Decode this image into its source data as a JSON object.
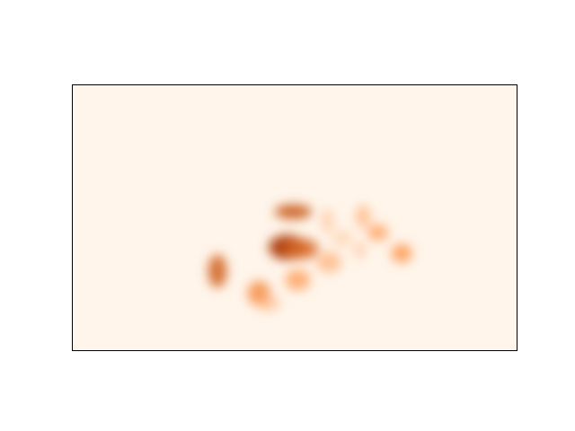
{
  "chart_data": {
    "type": "heatmap",
    "title": "",
    "xlabel": "",
    "ylabel": "",
    "axes_visible": false,
    "ticks_visible": false,
    "grid": false,
    "legend": "none",
    "colormap": "Oranges",
    "colors": {
      "low": "#fff5eb",
      "mid": "#fd8d3c",
      "high": "#a63603",
      "frame": "#000000"
    },
    "grid_size": [
      30,
      18
    ],
    "value_range": [
      0,
      1
    ],
    "hotspots": [
      {
        "x": 14.5,
        "y": 11.0,
        "sx": 0.9,
        "sy": 0.6,
        "value": 0.95
      },
      {
        "x": 15.5,
        "y": 11.1,
        "sx": 0.8,
        "sy": 0.5,
        "value": 0.7
      },
      {
        "x": 14.9,
        "y": 8.6,
        "sx": 0.9,
        "sy": 0.35,
        "value": 0.8
      },
      {
        "x": 9.8,
        "y": 12.6,
        "sx": 0.45,
        "sy": 0.8,
        "value": 0.75
      },
      {
        "x": 12.6,
        "y": 14.1,
        "sx": 0.55,
        "sy": 0.6,
        "value": 0.55
      },
      {
        "x": 13.2,
        "y": 14.8,
        "sx": 0.6,
        "sy": 0.35,
        "value": 0.3
      },
      {
        "x": 15.2,
        "y": 13.2,
        "sx": 0.6,
        "sy": 0.5,
        "value": 0.45
      },
      {
        "x": 17.3,
        "y": 12.0,
        "sx": 0.6,
        "sy": 0.5,
        "value": 0.35
      },
      {
        "x": 17.2,
        "y": 9.2,
        "sx": 0.3,
        "sy": 0.6,
        "value": 0.25
      },
      {
        "x": 19.6,
        "y": 8.9,
        "sx": 0.35,
        "sy": 0.55,
        "value": 0.35
      },
      {
        "x": 20.6,
        "y": 10.0,
        "sx": 0.5,
        "sy": 0.4,
        "value": 0.45
      },
      {
        "x": 19.4,
        "y": 11.2,
        "sx": 0.3,
        "sy": 0.4,
        "value": 0.25
      },
      {
        "x": 22.2,
        "y": 11.4,
        "sx": 0.5,
        "sy": 0.45,
        "value": 0.5
      },
      {
        "x": 18.2,
        "y": 10.4,
        "sx": 0.5,
        "sy": 0.4,
        "value": 0.2
      }
    ]
  }
}
